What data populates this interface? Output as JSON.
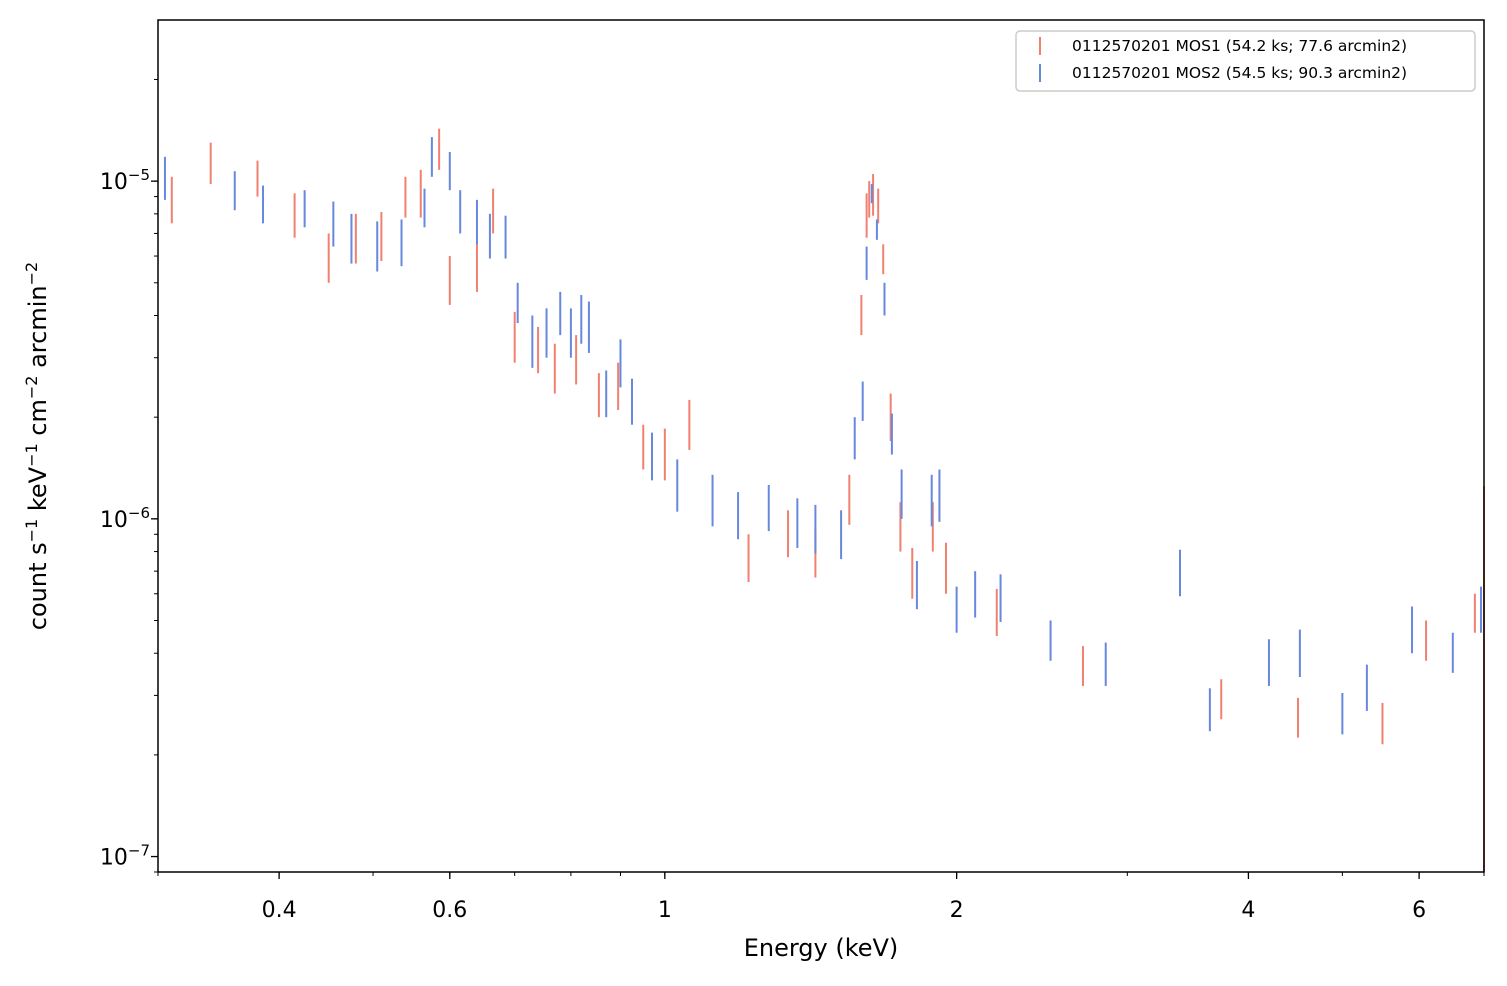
{
  "chart_data": {
    "type": "scatter",
    "xlabel": "Energy (keV)",
    "ylabel_parts": [
      "count s",
      "−1",
      " keV",
      "−1",
      " cm",
      "−2",
      " arcmin",
      "−2"
    ],
    "xscale": "log",
    "yscale": "log",
    "xlim": [
      0.3,
      7.0
    ],
    "ylim": [
      9e-08,
      3e-05
    ],
    "xtick_labels": [
      {
        "value": 0.4,
        "label": "0.4"
      },
      {
        "value": 0.6,
        "label": "0.6"
      },
      {
        "value": 1,
        "label": "1"
      },
      {
        "value": 2,
        "label": "2"
      },
      {
        "value": 4,
        "label": "4"
      },
      {
        "value": 6,
        "label": "6"
      }
    ],
    "ytick_labels": [
      {
        "value": 1e-05,
        "base": "10",
        "exp": "−5"
      },
      {
        "value": 1e-06,
        "base": "10",
        "exp": "−6"
      },
      {
        "value": 1e-07,
        "base": "10",
        "exp": "−7"
      }
    ],
    "legend_position": "upper right",
    "series": [
      {
        "name": "0112570201 MOS1 (54.2 ks; 77.6 arcmin2)",
        "color": "#f08070",
        "points": [
          [
            0.31,
            7.5e-06,
            1.03e-05
          ],
          [
            0.34,
            9.8e-06,
            1.3e-05
          ],
          [
            0.38,
            9e-06,
            1.15e-05
          ],
          [
            0.415,
            6.8e-06,
            9.2e-06
          ],
          [
            0.45,
            5e-06,
            7e-06
          ],
          [
            0.48,
            5.7e-06,
            8e-06
          ],
          [
            0.51,
            5.8e-06,
            8.1e-06
          ],
          [
            0.54,
            7.8e-06,
            1.03e-05
          ],
          [
            0.56,
            7.8e-06,
            1.08e-05
          ],
          [
            0.585,
            1.08e-05,
            1.43e-05
          ],
          [
            0.6,
            4.3e-06,
            6e-06
          ],
          [
            0.64,
            4.7e-06,
            6.6e-06
          ],
          [
            0.665,
            7e-06,
            9.5e-06
          ],
          [
            0.7,
            2.9e-06,
            4.1e-06
          ],
          [
            0.74,
            2.7e-06,
            3.7e-06
          ],
          [
            0.77,
            2.35e-06,
            3.3e-06
          ],
          [
            0.81,
            2.5e-06,
            3.5e-06
          ],
          [
            0.855,
            2e-06,
            2.7e-06
          ],
          [
            0.895,
            2.1e-06,
            2.9e-06
          ],
          [
            0.95,
            1.4e-06,
            1.9e-06
          ],
          [
            1.0,
            1.3e-06,
            1.85e-06
          ],
          [
            1.06,
            1.6e-06,
            2.25e-06
          ],
          [
            1.22,
            6.5e-07,
            9e-07
          ],
          [
            1.34,
            7.7e-07,
            1.06e-06
          ],
          [
            1.43,
            6.7e-07,
            9.3e-07
          ],
          [
            1.55,
            9.6e-07,
            1.35e-06
          ],
          [
            1.595,
            3.5e-06,
            4.6e-06
          ],
          [
            1.615,
            6.8e-06,
            9.2e-06
          ],
          [
            1.625,
            7.8e-06,
            1e-05
          ],
          [
            1.64,
            7.9e-06,
            1.05e-05
          ],
          [
            1.66,
            7.5e-06,
            9.5e-06
          ],
          [
            1.68,
            5.3e-06,
            6.5e-06
          ],
          [
            1.71,
            1.7e-06,
            2.35e-06
          ],
          [
            1.75,
            8e-07,
            1.12e-06
          ],
          [
            1.8,
            5.8e-07,
            8.2e-07
          ],
          [
            1.89,
            8e-07,
            1.12e-06
          ],
          [
            1.95,
            6e-07,
            8.5e-07
          ],
          [
            2.2,
            4.5e-07,
            6.2e-07
          ],
          [
            2.7,
            3.2e-07,
            4.2e-07
          ],
          [
            3.75,
            2.55e-07,
            3.35e-07
          ],
          [
            4.5,
            2.25e-07,
            2.95e-07
          ],
          [
            5.5,
            2.15e-07,
            2.85e-07
          ],
          [
            6.1,
            3.8e-07,
            5e-07
          ],
          [
            6.85,
            4.6e-07,
            6e-07
          ],
          [
            7.0,
            9e-08,
            1.25e-06
          ]
        ]
      },
      {
        "name": "0112570201 MOS2 (54.5 ks; 90.3 arcmin2)",
        "color": "#6688dd",
        "points": [
          [
            0.305,
            8.8e-06,
            1.18e-05
          ],
          [
            0.36,
            8.2e-06,
            1.07e-05
          ],
          [
            0.385,
            7.5e-06,
            9.7e-06
          ],
          [
            0.425,
            7.3e-06,
            9.4e-06
          ],
          [
            0.455,
            6.4e-06,
            8.7e-06
          ],
          [
            0.475,
            5.7e-06,
            8e-06
          ],
          [
            0.505,
            5.4e-06,
            7.6e-06
          ],
          [
            0.535,
            5.6e-06,
            7.7e-06
          ],
          [
            0.565,
            7.3e-06,
            9.5e-06
          ],
          [
            0.575,
            1.03e-05,
            1.35e-05
          ],
          [
            0.6,
            9.4e-06,
            1.22e-05
          ],
          [
            0.615,
            7e-06,
            9.4e-06
          ],
          [
            0.64,
            6.5e-06,
            8.8e-06
          ],
          [
            0.66,
            5.9e-06,
            8e-06
          ],
          [
            0.685,
            5.9e-06,
            7.9e-06
          ],
          [
            0.705,
            3.8e-06,
            5e-06
          ],
          [
            0.73,
            2.8e-06,
            4e-06
          ],
          [
            0.755,
            3e-06,
            4.2e-06
          ],
          [
            0.78,
            3.5e-06,
            4.7e-06
          ],
          [
            0.8,
            3e-06,
            4.2e-06
          ],
          [
            0.82,
            3.3e-06,
            4.6e-06
          ],
          [
            0.835,
            3.1e-06,
            4.4e-06
          ],
          [
            0.87,
            2e-06,
            2.75e-06
          ],
          [
            0.9,
            2.45e-06,
            3.4e-06
          ],
          [
            0.925,
            1.9e-06,
            2.6e-06
          ],
          [
            0.97,
            1.3e-06,
            1.8e-06
          ],
          [
            1.03,
            1.05e-06,
            1.5e-06
          ],
          [
            1.12,
            9.5e-07,
            1.35e-06
          ],
          [
            1.19,
            8.7e-07,
            1.2e-06
          ],
          [
            1.28,
            9.2e-07,
            1.26e-06
          ],
          [
            1.37,
            8.2e-07,
            1.15e-06
          ],
          [
            1.43,
            7.9e-07,
            1.1e-06
          ],
          [
            1.52,
            7.6e-07,
            1.06e-06
          ],
          [
            1.57,
            1.5e-06,
            2e-06
          ],
          [
            1.6,
            1.95e-06,
            2.55e-06
          ],
          [
            1.615,
            5.1e-06,
            6.4e-06
          ],
          [
            1.635,
            8.6e-06,
            9.8e-06
          ],
          [
            1.655,
            6.7e-06,
            7.7e-06
          ],
          [
            1.685,
            4e-06,
            5e-06
          ],
          [
            1.715,
            1.55e-06,
            2.05e-06
          ],
          [
            1.755,
            1e-06,
            1.4e-06
          ],
          [
            1.82,
            5.4e-07,
            7.5e-07
          ],
          [
            1.885,
            9.5e-07,
            1.35e-06
          ],
          [
            1.92,
            9.8e-07,
            1.4e-06
          ],
          [
            2.0,
            4.6e-07,
            6.3e-07
          ],
          [
            2.09,
            5.1e-07,
            7e-07
          ],
          [
            2.22,
            4.95e-07,
            6.85e-07
          ],
          [
            2.5,
            3.8e-07,
            5e-07
          ],
          [
            2.85,
            3.2e-07,
            4.3e-07
          ],
          [
            3.4,
            5.9e-07,
            8.1e-07
          ],
          [
            3.65,
            2.35e-07,
            3.15e-07
          ],
          [
            4.2,
            3.2e-07,
            4.4e-07
          ],
          [
            4.52,
            3.4e-07,
            4.7e-07
          ],
          [
            5.0,
            2.3e-07,
            3.05e-07
          ],
          [
            5.3,
            2.7e-07,
            3.7e-07
          ],
          [
            5.9,
            4e-07,
            5.5e-07
          ],
          [
            6.5,
            3.5e-07,
            4.6e-07
          ],
          [
            6.95,
            4.6e-07,
            6.3e-07
          ]
        ]
      }
    ]
  }
}
